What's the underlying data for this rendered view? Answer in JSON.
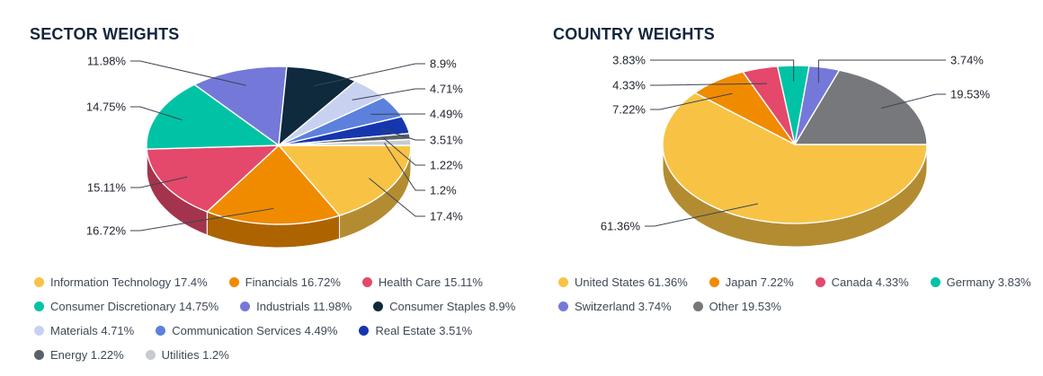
{
  "page": {
    "background_color": "#ffffff",
    "title_color": "#14263E"
  },
  "chart_data": [
    {
      "type": "pie",
      "variant": "pie-3d",
      "title": "SECTOR WEIGHTS",
      "legend_position": "bottom",
      "start_angle": "3-oclock-clockwise",
      "slices": [
        {
          "label": "Information Technology",
          "value": 17.4,
          "display": "17.4%",
          "color": "#F8C345"
        },
        {
          "label": "Financials",
          "value": 16.72,
          "display": "16.72%",
          "color": "#F08B00"
        },
        {
          "label": "Health Care",
          "value": 15.11,
          "display": "15.11%",
          "color": "#E4486B"
        },
        {
          "label": "Consumer Discretionary",
          "value": 14.75,
          "display": "14.75%",
          "color": "#00C3A5"
        },
        {
          "label": "Industrials",
          "value": 11.98,
          "display": "11.98%",
          "color": "#7479D9"
        },
        {
          "label": "Consumer Staples",
          "value": 8.9,
          "display": "8.9%",
          "color": "#0E2A3C"
        },
        {
          "label": "Materials",
          "value": 4.71,
          "display": "4.71%",
          "color": "#C8D2F0"
        },
        {
          "label": "Communication Services",
          "value": 4.49,
          "display": "4.49%",
          "color": "#5B81DC"
        },
        {
          "label": "Real Estate",
          "value": 3.51,
          "display": "3.51%",
          "color": "#1636AE"
        },
        {
          "label": "Energy",
          "value": 1.22,
          "display": "1.22%",
          "color": "#5A6169"
        },
        {
          "label": "Utilities",
          "value": 1.2,
          "display": "1.2%",
          "color": "#C7CBCF"
        }
      ]
    },
    {
      "type": "pie",
      "variant": "pie-3d",
      "title": "COUNTRY WEIGHTS",
      "legend_position": "bottom",
      "start_angle": "3-oclock-clockwise",
      "slices": [
        {
          "label": "United States",
          "value": 61.36,
          "display": "61.36%",
          "color": "#F8C345"
        },
        {
          "label": "Japan",
          "value": 7.22,
          "display": "7.22%",
          "color": "#F08B00"
        },
        {
          "label": "Canada",
          "value": 4.33,
          "display": "4.33%",
          "color": "#E4486B"
        },
        {
          "label": "Germany",
          "value": 3.83,
          "display": "3.83%",
          "color": "#00C3A5"
        },
        {
          "label": "Switzerland",
          "value": 3.74,
          "display": "3.74%",
          "color": "#7479D9"
        },
        {
          "label": "Other",
          "value": 19.53,
          "display": "19.53%",
          "color": "#76787B"
        }
      ]
    }
  ]
}
